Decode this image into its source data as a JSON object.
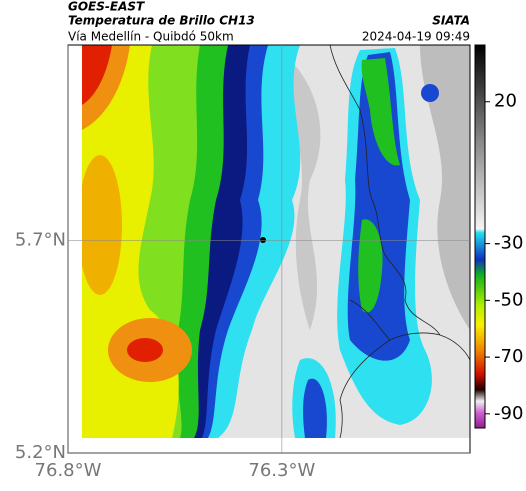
{
  "header": {
    "satellite": "GOES-EAST",
    "title": "Temperatura de Brillo CH13",
    "source": "SIATA",
    "subtitle": "Vía Medellín - Quibdó 50km",
    "timestamp": "2024-04-19 09:49"
  },
  "map": {
    "latlim": [
      5.2,
      6.16
    ],
    "lonlim": [
      -76.8,
      -75.86
    ],
    "lat_ticks": [
      {
        "value": 5.7,
        "label": "5.7°N"
      },
      {
        "value": 5.2,
        "label": "5.2°N"
      }
    ],
    "lon_ticks": [
      {
        "value": -76.8,
        "label": "76.8°W"
      },
      {
        "value": -76.3,
        "label": "76.3°W"
      }
    ],
    "grid": true
  },
  "colorbar": {
    "lim": [
      40,
      -95
    ],
    "ticks": [
      20,
      -30,
      -50,
      -70,
      -90
    ]
  }
}
